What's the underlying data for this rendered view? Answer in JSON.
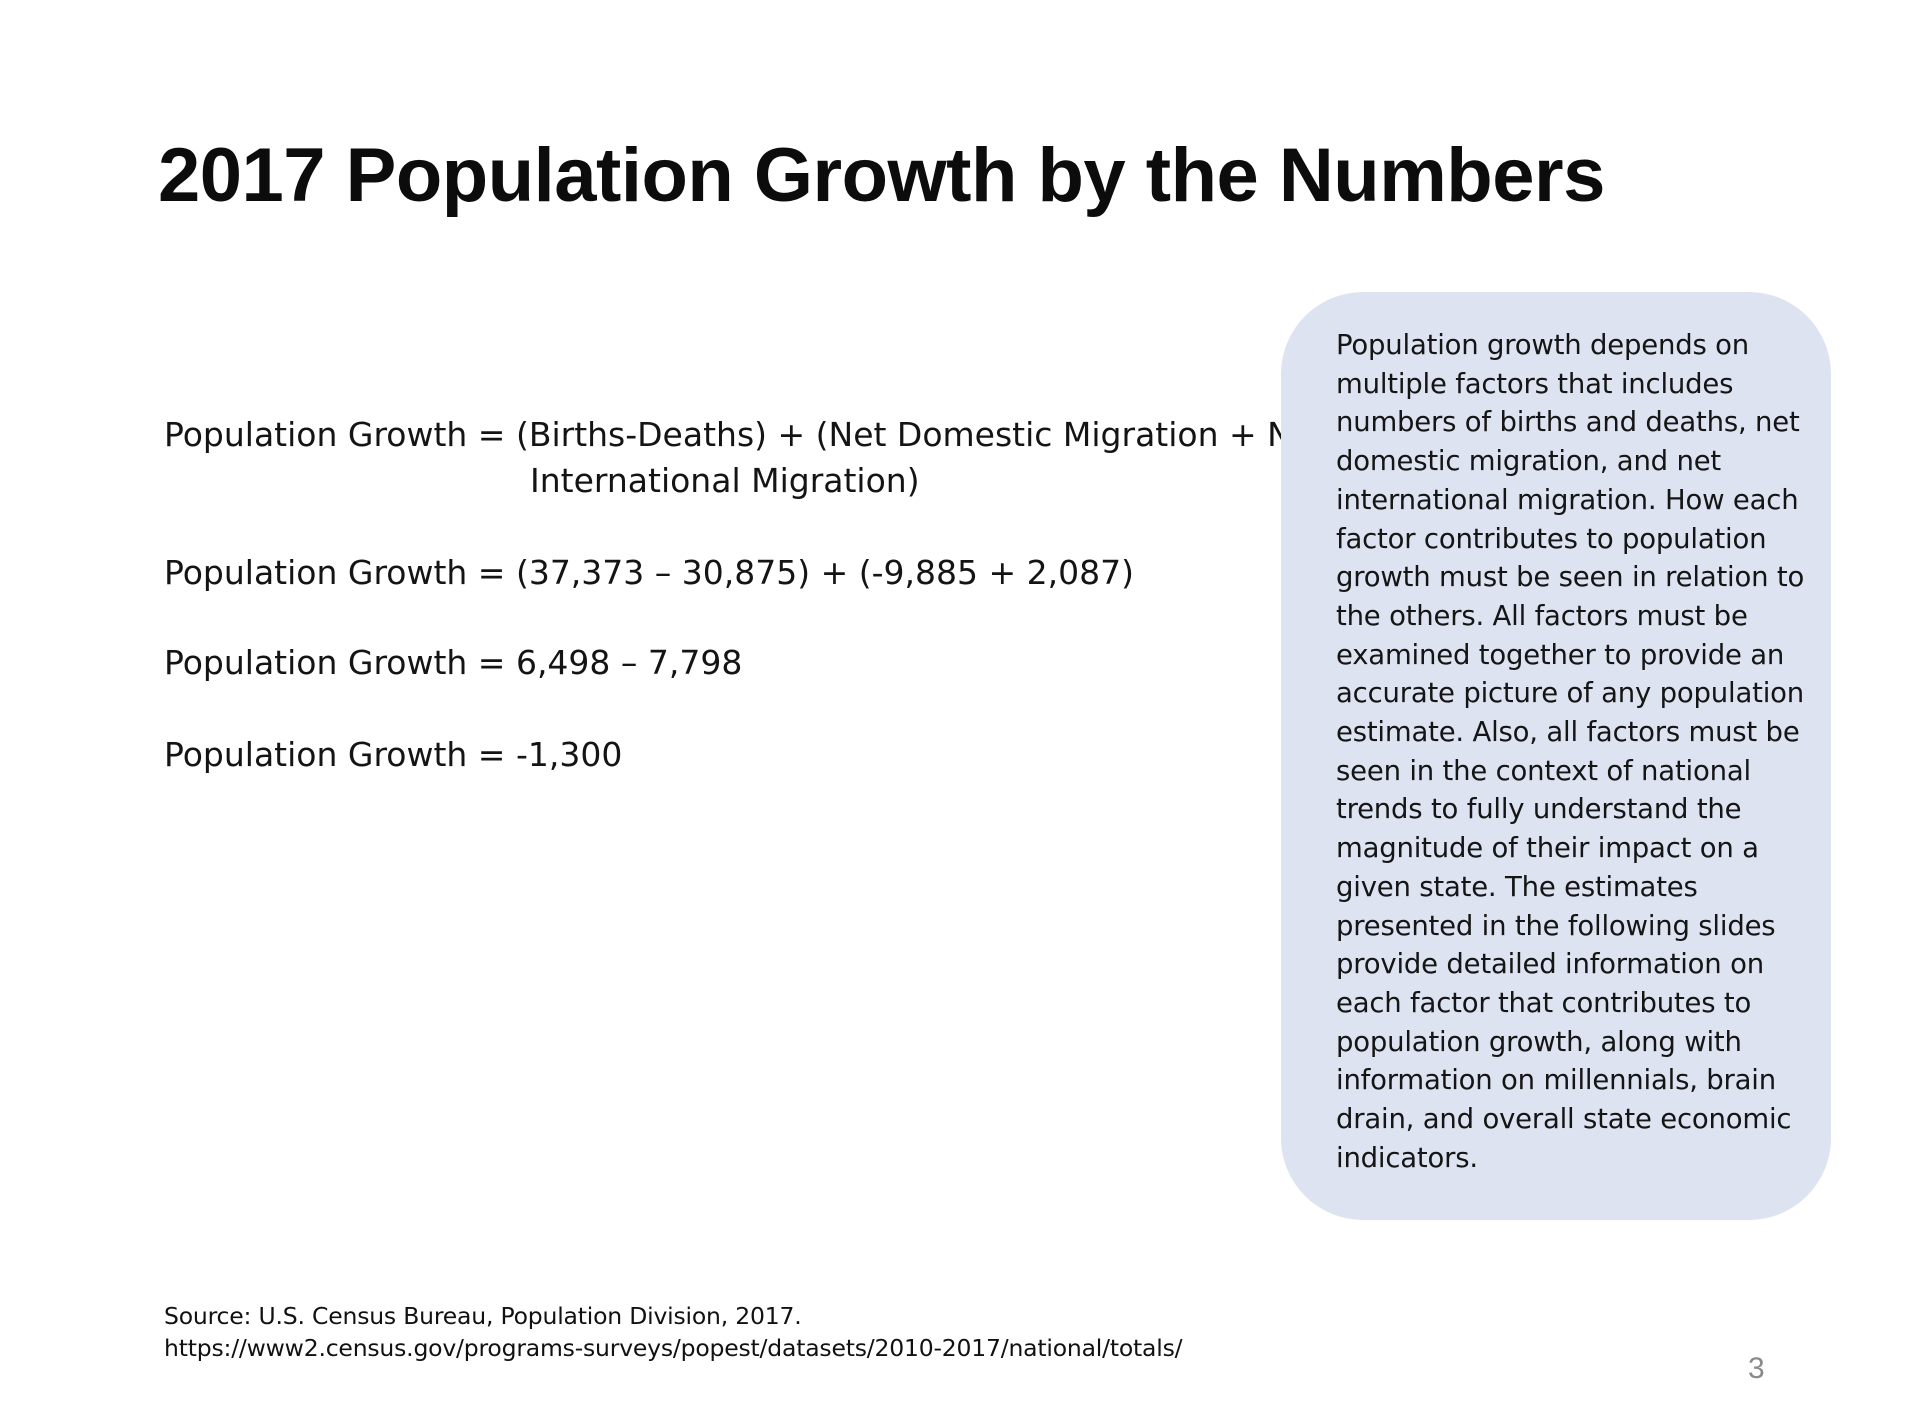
{
  "slide": {
    "title": "2017 Population Growth by the Numbers",
    "page_number": "3"
  },
  "equations": {
    "line1_a": "Population Growth = (Births-Deaths) + (Net Domestic Migration + Net",
    "line1_b": "International Migration)",
    "line2": "Population Growth = (37,373 – 30,875) + (-9,885 + 2,087)",
    "line3": "Population Growth = 6,498 – 7,798",
    "line4": "Population Growth = -1,300"
  },
  "info_box": {
    "lines": [
      "Population growth depends on",
      "multiple factors that includes",
      "numbers of births and deaths, net",
      "domestic migration, and net",
      "international migration. How each",
      "factor contributes to population",
      "growth must be seen in relation to",
      "the others. All factors must be",
      "examined together to provide an",
      "accurate picture of any population",
      "estimate. Also, all factors must be",
      "seen in the context of national",
      "trends to fully understand the",
      "magnitude of their impact on a",
      "given state. The estimates",
      "presented in the following slides",
      "provide detailed information on",
      "each factor that contributes to",
      "population growth, along with",
      "information on millennials, brain",
      "drain, and overall state economic",
      "indicators."
    ],
    "background_color": "#dde3f1"
  },
  "source": {
    "citation": "Source: U.S. Census Bureau, Population Division, 2017.",
    "url": "https://www2.census.gov/programs-surveys/popest/datasets/2010-2017/national/totals/"
  }
}
